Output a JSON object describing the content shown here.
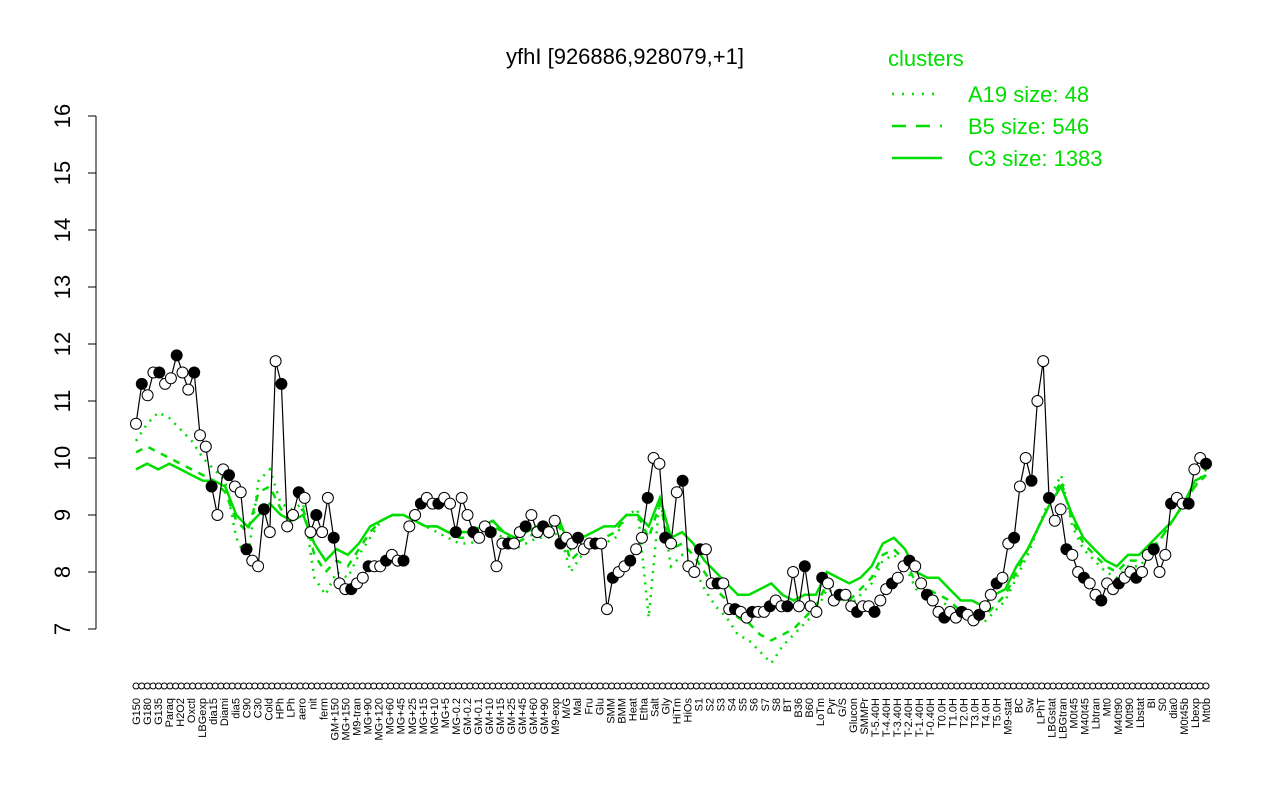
{
  "chart_data": {
    "type": "line",
    "title": "yfhI [926886,928079,+1]",
    "xlabel": "",
    "ylabel": "",
    "ylim": [
      7,
      16
    ],
    "yticks": [
      7,
      8,
      9,
      10,
      11,
      12,
      13,
      14,
      15,
      16
    ],
    "grid": false,
    "legend": {
      "title": "clusters",
      "position": "top-right",
      "color": "#00dd00",
      "entries": [
        {
          "label": "A19 size: 48",
          "style": "dotted"
        },
        {
          "label": "B5 size: 546",
          "style": "dashed"
        },
        {
          "label": "C3 size: 1383",
          "style": "solid"
        }
      ]
    },
    "x_tick_labels": [
      "G150",
      "G180",
      "G135",
      "Paraq",
      "H2O2",
      "Oxctl",
      "LBGexp",
      "dia15",
      "Diami",
      "dia5",
      "C90",
      "C30",
      "Cold",
      "HPh",
      "LPh",
      "aero",
      "nit",
      "ferm",
      "GM+150",
      "MG+150",
      "M9-tran",
      "MG+90",
      "MG+120",
      "MG+60",
      "MG+45",
      "MG+25",
      "MG+15",
      "MG+10",
      "MG+5",
      "MG-0.2",
      "GM-0.2",
      "GM-0.1",
      "GM+10",
      "GM+15",
      "GM+25",
      "GM+45",
      "GM+60",
      "GM+90",
      "M9-exp",
      "M/G",
      "Mal",
      "Fru",
      "Glu",
      "SMM",
      "BMM",
      "Heat",
      "Etha",
      "Salt",
      "Gly",
      "HiTm",
      "HiOs",
      "S1",
      "S2",
      "S3",
      "S4",
      "S5",
      "S6",
      "S7",
      "S8",
      "BT",
      "B36",
      "B60",
      "LoTm",
      "Pyr",
      "G/S",
      "Glucon",
      "SMMPr",
      "T-5.40H",
      "T-4.40H",
      "T-3.40H",
      "T-2.40H",
      "T-1.40H",
      "T-0.40H",
      "T0.0H",
      "T1.0H",
      "T2.0H",
      "T3.0H",
      "T4.0H",
      "T5.0H",
      "M9-stat",
      "BC",
      "Sw",
      "LPhT",
      "LBGstat",
      "LBGtran",
      "M0t45",
      "M40t45",
      "Lbtran",
      "Mt0",
      "M40t90",
      "M0t90",
      "Lbstat",
      "BI",
      "S0",
      "dia0",
      "M0t45b",
      "Lbexp",
      "Mt0b"
    ],
    "series": [
      {
        "style": "points",
        "y": [
          10.6,
          11.3,
          11.1,
          11.5,
          11.5,
          11.3,
          11.4,
          11.8,
          11.5,
          11.2,
          11.5,
          10.4,
          10.2,
          9.5,
          9.0,
          9.8,
          9.7,
          9.5,
          9.4,
          8.4,
          8.2,
          8.1,
          9.1,
          8.7,
          11.7,
          11.3,
          8.8,
          9.0,
          9.4,
          9.3,
          8.7,
          9.0,
          8.7,
          9.3,
          8.6,
          7.8,
          7.7,
          7.7,
          7.8,
          7.9,
          8.1,
          8.1,
          8.1,
          8.2,
          8.3,
          8.2,
          8.2,
          8.8,
          9.0,
          9.2,
          9.3,
          9.2,
          9.2,
          9.3,
          9.2,
          8.7,
          9.3,
          9.0,
          8.7,
          8.6,
          8.8,
          8.7,
          8.1,
          8.5,
          8.5,
          8.5,
          8.7,
          8.8,
          9.0,
          8.7,
          8.8,
          8.7,
          8.9,
          8.5,
          8.6,
          8.5,
          8.6,
          8.4,
          8.5,
          8.5,
          8.5,
          7.35,
          7.9,
          8.0,
          8.1,
          8.2,
          8.4,
          8.6,
          9.3,
          10.0,
          9.9,
          8.6,
          8.5,
          9.4,
          9.6,
          8.1,
          8.0,
          8.4,
          8.4,
          7.8,
          7.8,
          7.8,
          7.35,
          7.35,
          7.3,
          7.2,
          7.3,
          7.3,
          7.3,
          7.4,
          7.5,
          7.4,
          7.4,
          8.0,
          7.4,
          8.1,
          7.4,
          7.3,
          7.9,
          7.8,
          7.5,
          7.6,
          7.6,
          7.4,
          7.3,
          7.4,
          7.4,
          7.3,
          7.5,
          7.7,
          7.8,
          7.9,
          8.1,
          8.2,
          8.1,
          7.8,
          7.6,
          7.5,
          7.3,
          7.2,
          7.3,
          7.2,
          7.3,
          7.25,
          7.15,
          7.25,
          7.4,
          7.6,
          7.8,
          7.9,
          8.5,
          8.6,
          9.5,
          10.0,
          9.6,
          11.0,
          11.7,
          9.3,
          8.9,
          9.1,
          8.4,
          8.3,
          8.0,
          7.9,
          7.8,
          7.6,
          7.5,
          7.8,
          7.7,
          7.8,
          7.9,
          8.0,
          7.9,
          8.0,
          8.3,
          8.4,
          8.0,
          8.3,
          9.2,
          9.3,
          9.2,
          9.2,
          9.8,
          10.0,
          9.9
        ]
      },
      {
        "name": "C3",
        "style": "solid",
        "y": [
          9.8,
          9.9,
          9.8,
          9.9,
          9.8,
          9.7,
          9.6,
          9.6,
          9.5,
          9.0,
          8.8,
          9.0,
          9.2,
          9.0,
          8.9,
          9.0,
          8.5,
          8.2,
          8.4,
          8.3,
          8.5,
          8.8,
          8.9,
          9.0,
          9.0,
          8.9,
          8.8,
          8.8,
          8.7,
          8.7,
          8.7,
          8.8,
          8.9,
          8.7,
          8.6,
          8.7,
          8.8,
          8.8,
          8.9,
          8.4,
          8.6,
          8.7,
          8.8,
          8.8,
          9.0,
          9.0,
          8.8,
          9.3,
          8.6,
          8.7,
          8.5,
          8.2,
          8.0,
          7.8,
          7.6,
          7.6,
          7.7,
          7.8,
          7.6,
          7.5,
          7.6,
          7.6,
          8.0,
          7.9,
          7.8,
          7.9,
          8.1,
          8.5,
          8.6,
          8.4,
          8.0,
          7.9,
          7.9,
          7.7,
          7.5,
          7.5,
          7.4,
          7.6,
          7.7,
          8.1,
          8.4,
          8.8,
          9.2,
          9.5,
          9.0,
          8.6,
          8.4,
          8.2,
          8.1,
          8.3,
          8.3,
          8.5,
          8.7,
          8.9,
          9.2,
          9.6,
          9.7
        ]
      },
      {
        "name": "B5",
        "style": "dashed",
        "y": [
          10.1,
          10.2,
          10.1,
          10.0,
          9.9,
          9.8,
          9.7,
          9.6,
          9.4,
          8.9,
          8.7,
          9.4,
          9.5,
          9.1,
          9.0,
          9.1,
          8.3,
          8.0,
          8.2,
          8.1,
          8.4,
          8.7,
          8.9,
          9.0,
          9.0,
          8.9,
          8.8,
          8.8,
          8.7,
          8.6,
          8.6,
          8.7,
          8.8,
          8.7,
          8.5,
          8.6,
          8.7,
          8.7,
          8.8,
          8.2,
          8.4,
          8.5,
          8.6,
          8.7,
          9.0,
          9.0,
          8.6,
          9.2,
          8.4,
          8.5,
          8.3,
          8.0,
          7.7,
          7.5,
          7.2,
          7.1,
          6.9,
          6.8,
          6.9,
          7.0,
          7.2,
          7.4,
          7.8,
          7.7,
          7.5,
          7.7,
          7.9,
          8.3,
          8.4,
          8.2,
          7.8,
          7.7,
          7.6,
          7.5,
          7.3,
          7.3,
          7.2,
          7.4,
          7.6,
          8.0,
          8.4,
          8.8,
          9.2,
          9.6,
          8.9,
          8.5,
          8.3,
          8.1,
          8.0,
          8.2,
          8.2,
          8.4,
          8.6,
          8.9,
          9.2,
          9.5,
          9.7
        ]
      },
      {
        "name": "A19",
        "style": "dotted",
        "y": [
          10.3,
          10.6,
          10.8,
          10.7,
          10.5,
          10.3,
          10.0,
          9.8,
          9.6,
          8.6,
          8.2,
          9.6,
          9.8,
          9.2,
          9.1,
          9.2,
          7.9,
          7.6,
          8.0,
          7.9,
          8.3,
          8.6,
          8.9,
          9.0,
          9.0,
          8.9,
          8.8,
          8.7,
          8.6,
          8.5,
          8.5,
          8.6,
          8.7,
          8.6,
          8.4,
          8.5,
          8.6,
          8.6,
          8.7,
          8.0,
          8.3,
          8.4,
          8.5,
          8.6,
          9.0,
          9.1,
          7.2,
          9.3,
          8.1,
          8.3,
          8.1,
          7.7,
          7.4,
          7.2,
          6.9,
          6.8,
          6.6,
          6.4,
          6.7,
          6.9,
          7.1,
          7.3,
          7.7,
          7.6,
          7.4,
          7.6,
          7.8,
          8.2,
          8.3,
          8.1,
          7.7,
          7.6,
          7.5,
          7.4,
          7.2,
          7.2,
          7.1,
          7.3,
          7.5,
          7.9,
          8.3,
          8.8,
          9.3,
          9.7,
          8.8,
          8.4,
          8.2,
          8.0,
          7.9,
          8.1,
          8.1,
          8.3,
          8.6,
          8.9,
          9.2,
          9.5,
          9.8
        ]
      }
    ]
  }
}
